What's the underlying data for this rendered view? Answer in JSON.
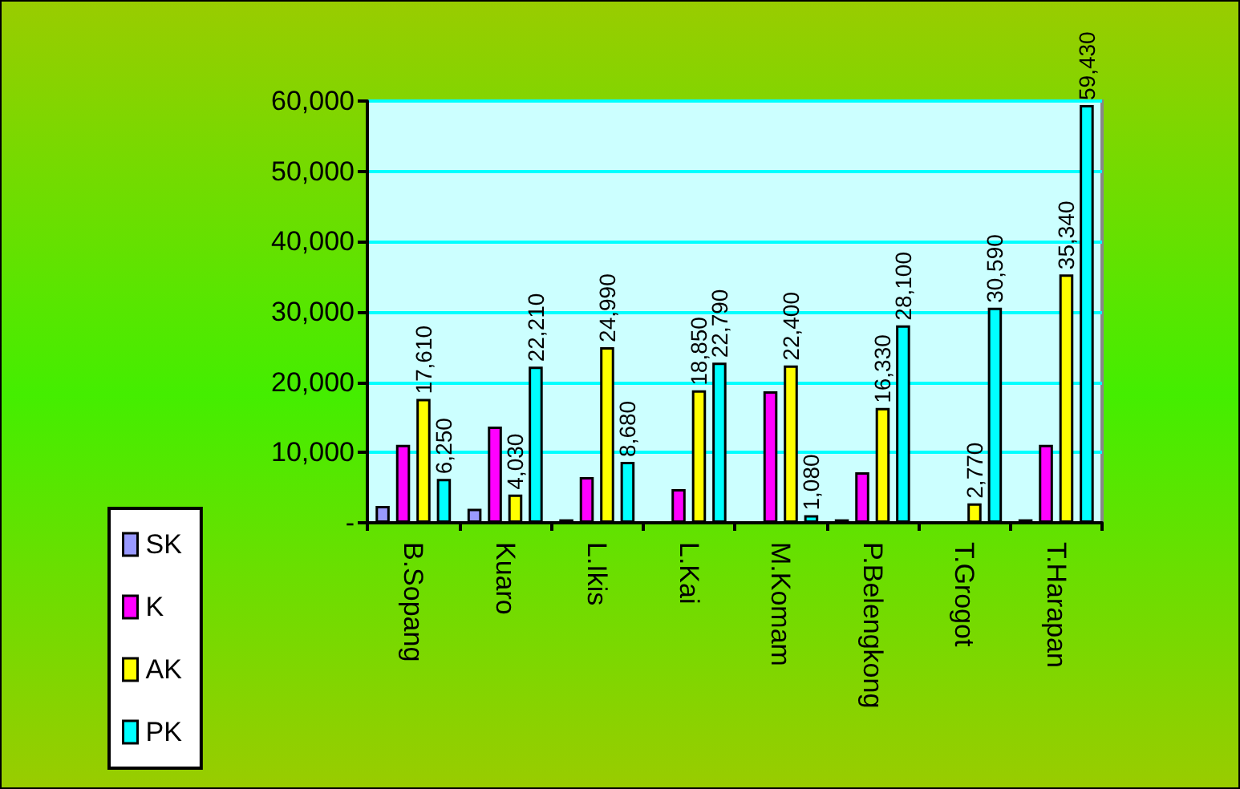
{
  "chart_data": {
    "type": "bar",
    "categories": [
      "B.Sopang",
      "Kuaro",
      "L.Ikis",
      "L.Kai",
      "M.Komam",
      "P.Belengkong",
      "T.Grogot",
      "T.Harapan"
    ],
    "series": [
      {
        "name": "SK",
        "color": "#9999ff",
        "values": [
          2400,
          2000,
          500,
          null,
          null,
          500,
          null,
          500
        ]
      },
      {
        "name": "K",
        "color": "#ff00ff",
        "values": [
          11100,
          13700,
          6500,
          4800,
          18700,
          7200,
          null,
          11100
        ]
      },
      {
        "name": "AK",
        "color": "#ffff00",
        "values": [
          17610,
          4030,
          24990,
          18850,
          22400,
          16330,
          2770,
          35340
        ],
        "value_labels": [
          "17,610",
          "4,030",
          "24,990",
          "18,850",
          "22,400",
          "16,330",
          "2,770",
          "35,340"
        ]
      },
      {
        "name": "PK",
        "color": "#00ffff",
        "values": [
          6250,
          22210,
          8680,
          22790,
          1080,
          28100,
          30590,
          59430
        ],
        "value_labels": [
          "6,250",
          "22,210",
          "8,680",
          "22,790",
          "1,080",
          "28,100",
          "30,590",
          "59,430"
        ]
      }
    ],
    "ylim": [
      0,
      60000
    ],
    "yticks": [
      {
        "value": 0,
        "label": "-"
      },
      {
        "value": 10000,
        "label": "10,000"
      },
      {
        "value": 20000,
        "label": "20,000"
      },
      {
        "value": 30000,
        "label": "30,000"
      },
      {
        "value": 40000,
        "label": "40,000"
      },
      {
        "value": 50000,
        "label": "50,000"
      },
      {
        "value": 60000,
        "label": "60,000"
      }
    ],
    "grid": "y",
    "legend": "left"
  }
}
